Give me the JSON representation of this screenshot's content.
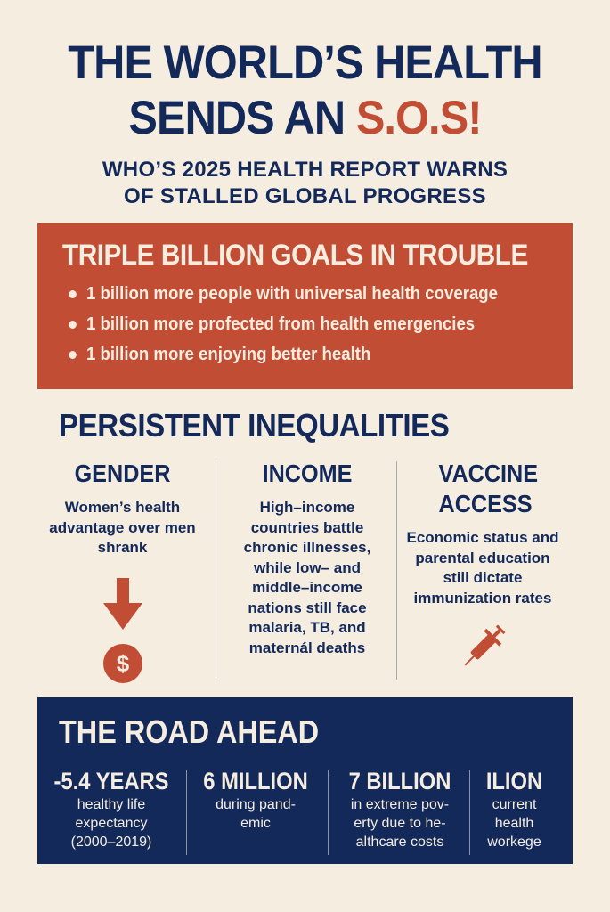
{
  "title": {
    "line1": "THE WORLD’S HEALTH",
    "line2_prefix": "SENDS AN ",
    "line2_highlight": "S.O.S!"
  },
  "subtitle": {
    "line1": "WHO’S 2025 HEALTH REPORT WARNS",
    "line2": "OF STALLED GLOBAL PROGRESS"
  },
  "goals": {
    "heading": "TRIPLE BILLION GOALS IN TROUBLE",
    "items": [
      "1 billion more people with universal health coverage",
      "1 billion more profected from health emergencies",
      "1 billion more enjoying better health"
    ]
  },
  "inequalities": {
    "heading": "PERSISTENT INEQUALITIES",
    "columns": [
      {
        "title": "GENDER",
        "text": "Women’s health advantage over men shrank",
        "icons": [
          "arrow-down-icon",
          "dollar-coin-icon"
        ]
      },
      {
        "title": "INCOME",
        "text": "High–income countries battle chronic illnesses, while low– and middle–income nations still face malaria, TB, and maternál deaths"
      },
      {
        "title": "VACCINE ACCESS",
        "text": "Economic status and parental education still dictate immunization rates",
        "icons": [
          "syringe-icon"
        ]
      }
    ]
  },
  "road": {
    "heading": "THE ROAD AHEAD",
    "stats": [
      {
        "value": "-5.4 YEARS",
        "desc": "healthy life expectancy (2000–2019)"
      },
      {
        "value": "6 MILLION",
        "desc": "during pand-emic"
      },
      {
        "value": "7 BILLION",
        "desc": "in extreme pov-erty due to he-althcare costs"
      },
      {
        "value": "ILION",
        "desc": "current health workege"
      }
    ]
  },
  "colors": {
    "background": "#f6ede1",
    "navy": "#13295a",
    "red": "#c14d34"
  }
}
